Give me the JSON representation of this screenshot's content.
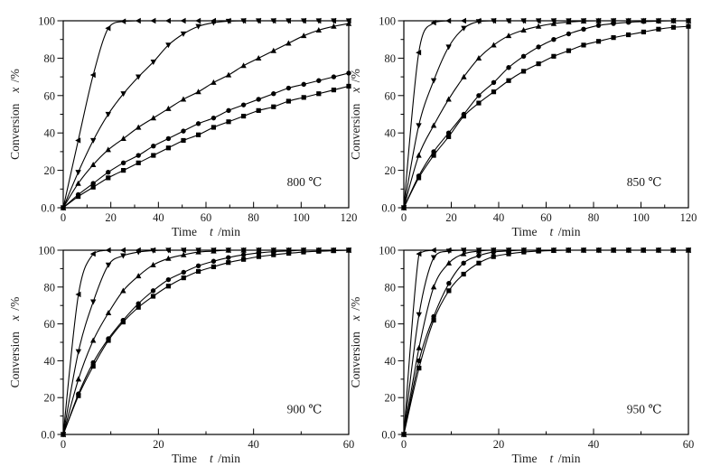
{
  "figure": {
    "background": "#ffffff",
    "line_color": "#000000",
    "marker_color": "#000000",
    "text_color": "#1a1a1a"
  },
  "axis_titles": {
    "x_word": "Time",
    "x_symbol": "t",
    "x_unit": "/min",
    "y_word": "Conversion",
    "y_symbol": "x",
    "y_unit": "/%"
  },
  "chart_data": [
    {
      "type": "line",
      "annotation": "800 ℃",
      "xlabel": "Time t /min",
      "ylabel": "Conversion x /%",
      "xlim": [
        0,
        120
      ],
      "ylim": [
        0,
        100
      ],
      "xticks": [
        0,
        20,
        40,
        60,
        80,
        100,
        120
      ],
      "xtick_labels": [
        "0",
        "20",
        "40",
        "60",
        "80",
        "100",
        "120"
      ],
      "yticks": [
        0,
        20,
        40,
        60,
        80,
        100
      ],
      "ytick_labels": [
        "0.0",
        "20",
        "40",
        "60",
        "80",
        "100"
      ],
      "minor_step_x": 10,
      "minor_step_y": 10,
      "x": [
        0,
        6.3,
        12.6,
        18.9,
        25.3,
        31.6,
        37.9,
        44.2,
        50.5,
        56.8,
        63.2,
        69.5,
        75.8,
        82.1,
        88.4,
        94.7,
        101.1,
        107.4,
        113.7,
        120
      ],
      "series": [
        {
          "name": "series-triangle-left",
          "marker": "triangle-left",
          "y": [
            0,
            36,
            71,
            96,
            99.7,
            100,
            100,
            100,
            100,
            100,
            100,
            100,
            100,
            100,
            100,
            100,
            100,
            100,
            100,
            100
          ]
        },
        {
          "name": "series-triangle-down",
          "marker": "triangle-down",
          "y": [
            0,
            19,
            36,
            50,
            61,
            70,
            78,
            87,
            93,
            97,
            99,
            99.8,
            100,
            100,
            100,
            100,
            100,
            100,
            100,
            100
          ]
        },
        {
          "name": "series-triangle-up",
          "marker": "triangle-up",
          "y": [
            0,
            13,
            23,
            31,
            37,
            43,
            48,
            53,
            58,
            62,
            67,
            71,
            76,
            80,
            84,
            88,
            92,
            95,
            97,
            98.5
          ]
        },
        {
          "name": "series-circle",
          "marker": "circle",
          "y": [
            0,
            7,
            13,
            19,
            24,
            28,
            33,
            37,
            41,
            45,
            48,
            52,
            55,
            58,
            61,
            64,
            66,
            68,
            70,
            72
          ]
        },
        {
          "name": "series-square",
          "marker": "square",
          "y": [
            0,
            6,
            11,
            16,
            20,
            24,
            28,
            32,
            36,
            39,
            43,
            46,
            49,
            52,
            54,
            57,
            59,
            61,
            63,
            65
          ]
        }
      ]
    },
    {
      "type": "line",
      "annotation": "850 ℃",
      "xlabel": "Time t /min",
      "ylabel": "Conversion x /%",
      "xlim": [
        0,
        120
      ],
      "ylim": [
        0,
        100
      ],
      "xticks": [
        0,
        20,
        40,
        60,
        80,
        100,
        120
      ],
      "xtick_labels": [
        "0",
        "20",
        "40",
        "60",
        "80",
        "100",
        "120"
      ],
      "yticks": [
        0,
        20,
        40,
        60,
        80,
        100
      ],
      "ytick_labels": [
        "0.0",
        "20",
        "40",
        "60",
        "80",
        "100"
      ],
      "minor_step_x": 10,
      "minor_step_y": 10,
      "x": [
        0,
        6.3,
        12.6,
        18.9,
        25.3,
        31.6,
        37.9,
        44.2,
        50.5,
        56.8,
        63.2,
        69.5,
        75.8,
        82.1,
        88.4,
        94.7,
        101.1,
        107.4,
        113.7,
        120
      ],
      "series": [
        {
          "name": "series-triangle-left",
          "marker": "triangle-left",
          "y": [
            0,
            83,
            99,
            100,
            100,
            100,
            100,
            100,
            100,
            100,
            100,
            100,
            100,
            100,
            100,
            100,
            100,
            100,
            100,
            100
          ]
        },
        {
          "name": "series-triangle-down",
          "marker": "triangle-down",
          "y": [
            0,
            44,
            68,
            86,
            96,
            99.6,
            100,
            100,
            100,
            100,
            100,
            100,
            100,
            100,
            100,
            100,
            100,
            100,
            100,
            100
          ]
        },
        {
          "name": "series-triangle-up",
          "marker": "triangle-up",
          "y": [
            0,
            28,
            44,
            58,
            70,
            80,
            87,
            92,
            95,
            97,
            98.5,
            99.3,
            99.8,
            100,
            100,
            100,
            100,
            100,
            100,
            100
          ]
        },
        {
          "name": "series-circle",
          "marker": "circle",
          "y": [
            0,
            17,
            30,
            40,
            50,
            60,
            67,
            75,
            81,
            86,
            90,
            93,
            95.5,
            97.5,
            98.5,
            99.2,
            99.6,
            99.8,
            100,
            100
          ]
        },
        {
          "name": "series-square",
          "marker": "square",
          "y": [
            0,
            16,
            28,
            38,
            49,
            56,
            62,
            68,
            73,
            77,
            81,
            84,
            87,
            89,
            91,
            92.5,
            94,
            95.5,
            96.5,
            97
          ]
        }
      ]
    },
    {
      "type": "line",
      "annotation": "900 ℃",
      "xlabel": "Time t /min",
      "ylabel": "Conversion x /%",
      "xlim": [
        0,
        60
      ],
      "ylim": [
        0,
        100
      ],
      "xticks": [
        0,
        20,
        40,
        60
      ],
      "xtick_labels": [
        "0",
        "20",
        "40",
        "60"
      ],
      "yticks": [
        0,
        20,
        40,
        60,
        80,
        100
      ],
      "ytick_labels": [
        "0.0",
        "20",
        "40",
        "60",
        "80",
        "100"
      ],
      "minor_step_x": 10,
      "minor_step_y": 10,
      "x": [
        0,
        3.2,
        6.3,
        9.5,
        12.6,
        15.8,
        18.9,
        22.1,
        25.3,
        28.4,
        31.6,
        34.7,
        37.9,
        41.1,
        44.2,
        47.4,
        50.5,
        53.7,
        56.8,
        60
      ],
      "series": [
        {
          "name": "series-triangle-left",
          "marker": "triangle-left",
          "y": [
            0,
            76,
            98,
            100,
            100,
            100,
            100,
            100,
            100,
            100,
            100,
            100,
            100,
            100,
            100,
            100,
            100,
            100,
            100,
            100
          ]
        },
        {
          "name": "series-triangle-down",
          "marker": "triangle-down",
          "y": [
            0,
            45,
            72,
            92,
            97,
            99,
            99.8,
            100,
            100,
            100,
            100,
            100,
            100,
            100,
            100,
            100,
            100,
            100,
            100,
            100
          ]
        },
        {
          "name": "series-triangle-up",
          "marker": "triangle-up",
          "y": [
            0,
            30,
            51,
            66,
            78,
            86,
            92,
            95.5,
            97.5,
            99,
            99.5,
            100,
            100,
            100,
            100,
            100,
            100,
            100,
            100,
            100
          ]
        },
        {
          "name": "series-circle",
          "marker": "circle",
          "y": [
            0,
            22,
            39,
            52,
            62,
            71,
            78,
            84,
            88,
            91.5,
            94,
            96,
            97.5,
            98.5,
            99.2,
            99.6,
            100,
            100,
            100,
            100
          ]
        },
        {
          "name": "series-square",
          "marker": "square",
          "y": [
            0,
            21,
            37,
            51,
            61,
            69,
            75,
            80.5,
            85,
            88.5,
            91,
            93.3,
            95,
            96.5,
            97.5,
            98.3,
            99,
            99.4,
            99.7,
            100
          ]
        }
      ]
    },
    {
      "type": "line",
      "annotation": "950 ℃",
      "xlabel": "Time t /min",
      "ylabel": "Conversion x /%",
      "xlim": [
        0,
        60
      ],
      "ylim": [
        0,
        100
      ],
      "xticks": [
        0,
        20,
        40,
        60
      ],
      "xtick_labels": [
        "0",
        "20",
        "40",
        "60"
      ],
      "yticks": [
        0,
        20,
        40,
        60,
        80,
        100
      ],
      "ytick_labels": [
        "0.0",
        "20",
        "40",
        "60",
        "80",
        "100"
      ],
      "minor_step_x": 10,
      "minor_step_y": 10,
      "x": [
        0,
        3.2,
        6.3,
        9.5,
        12.6,
        15.8,
        18.9,
        22.1,
        25.3,
        28.4,
        31.6,
        34.7,
        37.9,
        41.1,
        44.2,
        47.4,
        50.5,
        53.7,
        56.8,
        60
      ],
      "series": [
        {
          "name": "series-triangle-left",
          "marker": "triangle-left",
          "y": [
            0,
            98,
            100,
            100,
            100,
            100,
            100,
            100,
            100,
            100,
            100,
            100,
            100,
            100,
            100,
            100,
            100,
            100,
            100,
            100
          ]
        },
        {
          "name": "series-triangle-down",
          "marker": "triangle-down",
          "y": [
            0,
            65,
            96,
            99.5,
            100,
            100,
            100,
            100,
            100,
            100,
            100,
            100,
            100,
            100,
            100,
            100,
            100,
            100,
            100,
            100
          ]
        },
        {
          "name": "series-triangle-up",
          "marker": "triangle-up",
          "y": [
            0,
            47,
            80,
            93,
            98,
            99.5,
            100,
            100,
            100,
            100,
            100,
            100,
            100,
            100,
            100,
            100,
            100,
            100,
            100,
            100
          ]
        },
        {
          "name": "series-circle",
          "marker": "circle",
          "y": [
            0,
            40,
            64,
            82,
            93,
            97,
            99,
            99.6,
            100,
            100,
            100,
            100,
            100,
            100,
            100,
            100,
            100,
            100,
            100,
            100
          ]
        },
        {
          "name": "series-square",
          "marker": "square",
          "y": [
            0,
            36,
            62,
            78,
            87,
            93,
            96.5,
            98,
            99,
            99.5,
            99.8,
            100,
            100,
            100,
            100,
            100,
            100,
            100,
            100,
            100
          ]
        }
      ]
    }
  ]
}
